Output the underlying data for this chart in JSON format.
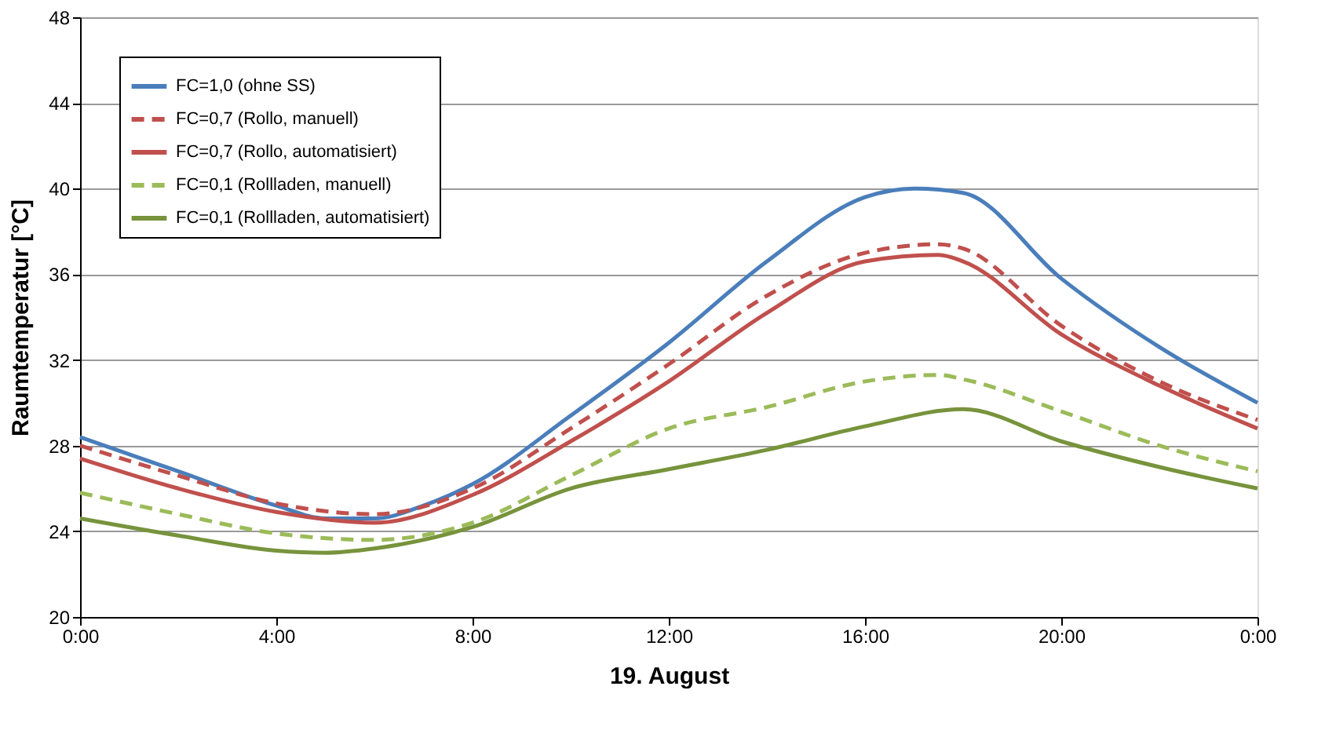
{
  "chart_data": {
    "type": "line",
    "xlabel": "19. August",
    "ylabel": "Raumtemperatur [°C]",
    "xlim": [
      0,
      24
    ],
    "xticks": [
      {
        "value": 0,
        "label": "0:00"
      },
      {
        "value": 4,
        "label": "4:00"
      },
      {
        "value": 8,
        "label": "8:00"
      },
      {
        "value": 12,
        "label": "12:00"
      },
      {
        "value": 16,
        "label": "16:00"
      },
      {
        "value": 20,
        "label": "20:00"
      },
      {
        "value": 24,
        "label": "0:00"
      }
    ],
    "ylim": [
      20,
      48
    ],
    "yticks": [
      20,
      24,
      28,
      32,
      36,
      40,
      44,
      48
    ],
    "grid": "y",
    "legend": "top left",
    "marker": "none",
    "series": [
      {
        "name": "FC=1,0 (ohne SS)",
        "color": "#4a7ebb",
        "line_style": "solid",
        "x": [
          0,
          2,
          4,
          5,
          6,
          7,
          8,
          10,
          12,
          14,
          16,
          17,
          18,
          20,
          22,
          24
        ],
        "values": [
          28.4,
          26.8,
          25.2,
          24.6,
          24.6,
          25.2,
          26.2,
          29.4,
          32.8,
          36.6,
          39.6,
          40.0,
          39.8,
          35.8,
          32.6,
          30.0
        ]
      },
      {
        "name": "FC=0,7 (Rollo, manuell)",
        "color": "#c0504d",
        "line_style": "dashed",
        "x": [
          0,
          2,
          4,
          6,
          8,
          10,
          12,
          14,
          16,
          17.5,
          18,
          20,
          22,
          24
        ],
        "values": [
          28.0,
          26.6,
          25.3,
          24.8,
          26.0,
          28.8,
          31.8,
          35.0,
          37.0,
          37.4,
          37.2,
          33.6,
          31.0,
          29.2
        ]
      },
      {
        "name": "FC=0,7 (Rollo, automatisiert)",
        "color": "#c0504d",
        "line_style": "solid",
        "x": [
          0,
          2,
          4,
          6,
          8,
          10,
          12,
          14,
          16,
          17.5,
          18,
          20,
          22,
          24
        ],
        "values": [
          27.4,
          26.0,
          24.9,
          24.4,
          25.7,
          28.2,
          31.0,
          34.2,
          36.6,
          36.9,
          36.6,
          33.2,
          30.8,
          28.8
        ]
      },
      {
        "name": "FC=0,1 (Rollladen, manuell)",
        "color": "#9bbb59",
        "line_style": "dashed",
        "x": [
          0,
          2,
          4,
          6,
          8,
          10,
          12,
          14,
          16,
          17.5,
          18,
          20,
          22,
          24
        ],
        "values": [
          25.8,
          24.8,
          23.9,
          23.6,
          24.4,
          26.6,
          28.8,
          29.8,
          31.0,
          31.3,
          31.1,
          29.6,
          28.0,
          26.8
        ]
      },
      {
        "name": "FC=0,1 (Rollladen, automatisiert)",
        "color": "#77933c",
        "line_style": "solid",
        "x": [
          0,
          2,
          4,
          5,
          6,
          8,
          10,
          12,
          14,
          16,
          18,
          20,
          22,
          24
        ],
        "values": [
          24.6,
          23.8,
          23.1,
          23.0,
          23.2,
          24.2,
          26.0,
          26.9,
          27.8,
          28.9,
          29.7,
          28.2,
          27.0,
          26.0
        ]
      }
    ]
  }
}
